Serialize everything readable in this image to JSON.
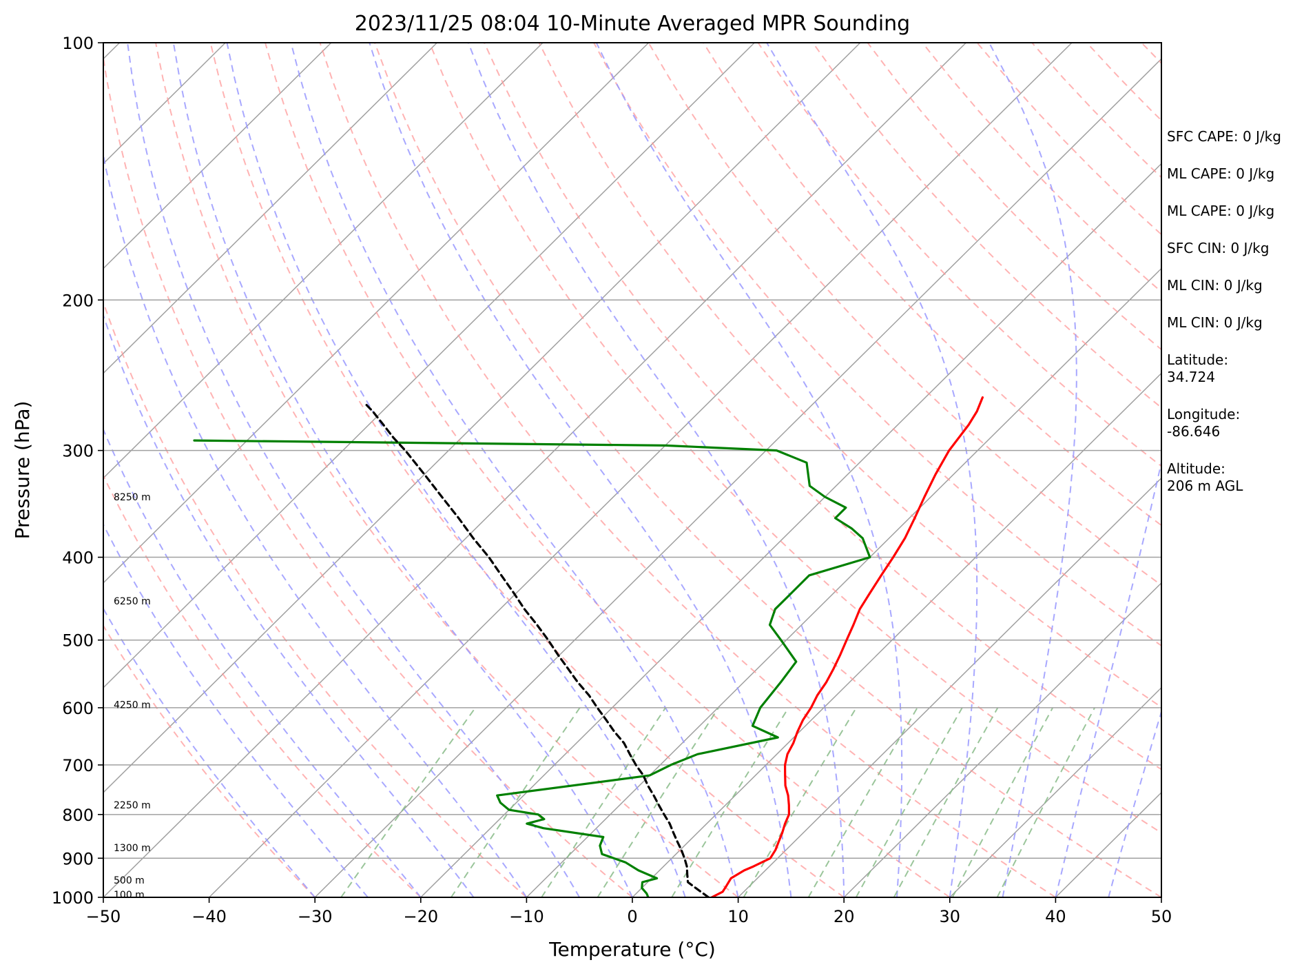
{
  "chart_data": {
    "type": "line",
    "title": "2023/11/25 08:04 10-Minute Averaged MPR Sounding",
    "xlabel": "Temperature (°C)",
    "ylabel": "Pressure (hPa)",
    "xlim": [
      -50,
      50
    ],
    "ylim": [
      1000,
      100
    ],
    "y_scale": "log",
    "grid": "pressure levels only",
    "x_ticks": [
      -50,
      -40,
      -30,
      -20,
      -10,
      0,
      10,
      20,
      30,
      40,
      50
    ],
    "y_ticks": [
      100,
      200,
      300,
      400,
      500,
      600,
      700,
      800,
      900,
      1000
    ],
    "x_tick_labels": [
      "−50",
      "−40",
      "−30",
      "−20",
      "−10",
      "0",
      "10",
      "20",
      "30",
      "40",
      "50"
    ],
    "y_tick_labels": [
      "100",
      "200",
      "300",
      "400",
      "500",
      "600",
      "700",
      "800",
      "900",
      "1000"
    ],
    "series": [
      {
        "color": "#ff0000",
        "p": [
          1000,
          985,
          970,
          950,
          930,
          920,
          900,
          880,
          860,
          840,
          820,
          800,
          780,
          760,
          740,
          720,
          700,
          680,
          660,
          640,
          620,
          600,
          580,
          560,
          540,
          520,
          500,
          480,
          460,
          440,
          420,
          400,
          380,
          360,
          340,
          320,
          300,
          280,
          270,
          260
        ],
        "T": [
          7.5,
          8.0,
          7.8,
          7.5,
          8.0,
          8.5,
          9.3,
          9.0,
          8.5,
          8.0,
          7.4,
          6.9,
          6.0,
          5.0,
          3.8,
          2.8,
          1.8,
          1.0,
          0.5,
          -0.2,
          -0.8,
          -1.2,
          -1.8,
          -2.2,
          -2.8,
          -3.5,
          -4.3,
          -5.1,
          -6.0,
          -6.6,
          -7.2,
          -7.8,
          -8.5,
          -9.5,
          -10.6,
          -11.7,
          -12.7,
          -13.3,
          -13.8,
          -14.6
        ]
      },
      {
        "color": "#008000",
        "p": [
          1000,
          990,
          975,
          960,
          950,
          930,
          910,
          890,
          870,
          850,
          830,
          820,
          810,
          800,
          790,
          775,
          760,
          720,
          700,
          680,
          650,
          630,
          600,
          560,
          530,
          500,
          480,
          460,
          440,
          420,
          400,
          380,
          370,
          360,
          350,
          340,
          330,
          310,
          300,
          296,
          292
        ],
        "T": [
          1.5,
          1.0,
          0.0,
          -0.5,
          0.5,
          -2.0,
          -4.0,
          -7.0,
          -8.0,
          -8.5,
          -15.0,
          -17.0,
          -15.8,
          -16.8,
          -20.0,
          -21.5,
          -22.5,
          -10.0,
          -9.0,
          -7.5,
          -1.5,
          -5.0,
          -6.0,
          -6.5,
          -7.0,
          -10.5,
          -13.0,
          -14.0,
          -14.0,
          -14.0,
          -10.0,
          -12.5,
          -14.5,
          -17.0,
          -17.0,
          -20.0,
          -22.5,
          -25.0,
          -29.0,
          -40.0,
          -85.0
        ]
      },
      {
        "color": "#000000",
        "dash": "9,6",
        "p": [
          1000,
          980,
          960,
          940,
          920,
          900,
          880,
          860,
          840,
          820,
          800,
          780,
          760,
          740,
          720,
          700,
          680,
          660,
          640,
          620,
          600,
          580,
          560,
          540,
          520,
          500,
          480,
          460,
          440,
          420,
          400,
          380,
          360,
          340,
          320,
          300,
          290,
          280,
          270,
          265
        ],
        "T": [
          7.2,
          5.5,
          3.8,
          3.0,
          2.2,
          1.2,
          0.1,
          -1.1,
          -2.3,
          -3.5,
          -4.9,
          -6.3,
          -7.7,
          -9.2,
          -10.6,
          -12.3,
          -13.9,
          -15.5,
          -17.5,
          -19.4,
          -21.4,
          -23.4,
          -25.7,
          -27.9,
          -30.2,
          -32.5,
          -35.0,
          -37.7,
          -40.3,
          -43.1,
          -46.0,
          -49.3,
          -52.6,
          -56.2,
          -60.0,
          -64.1,
          -66.4,
          -68.6,
          -70.9,
          -72.2
        ]
      }
    ],
    "height_labels": [
      {
        "p": 993,
        "text": "100 m"
      },
      {
        "p": 955,
        "text": "500 m"
      },
      {
        "p": 875,
        "text": "1300 m"
      },
      {
        "p": 780,
        "text": "2250 m"
      },
      {
        "p": 595,
        "text": "4250 m"
      },
      {
        "p": 450,
        "text": "6250 m"
      },
      {
        "p": 340,
        "text": "8250 m"
      }
    ],
    "reference_lines": {
      "dry_adiabat_color": "#ff9999",
      "moist_adiabat_color": "#9999ff",
      "mixing_ratio_color": "#88bb88",
      "isotherm_color": "#a0a0a0"
    }
  },
  "info": {
    "sfc_cape": "SFC CAPE: 0 J/kg",
    "ml_cape": "ML CAPE: 0 J/kg",
    "ml_cape_2": "ML CAPE: 0 J/kg",
    "sfc_cin": "SFC CIN: 0 J/kg",
    "ml_cin": "ML CIN: 0 J/kg",
    "ml_cin_2": "ML CIN: 0 J/kg",
    "latitude_label": "Latitude:",
    "latitude_value": "34.724",
    "longitude_label": "Longitude:",
    "longitude_value": "-86.646",
    "altitude_label": "Altitude:",
    "altitude_value": "206 m AGL"
  }
}
